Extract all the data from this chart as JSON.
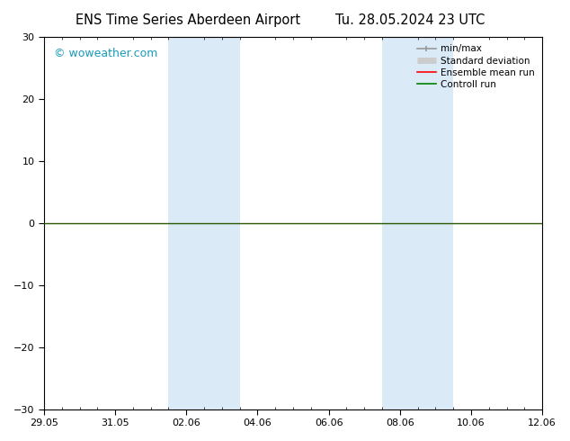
{
  "title_left": "ENS Time Series Aberdeen Airport",
  "title_right": "Tu. 28.05.2024 23 UTC",
  "ylim": [
    -30,
    30
  ],
  "yticks": [
    -30,
    -20,
    -10,
    0,
    10,
    20,
    30
  ],
  "xtick_labels": [
    "29.05",
    "31.05",
    "02.06",
    "04.06",
    "06.06",
    "08.06",
    "10.06",
    "12.06"
  ],
  "xtick_positions": [
    0,
    2,
    4,
    6,
    8,
    10,
    12,
    14
  ],
  "background_color": "#ffffff",
  "plot_bg_color": "#ffffff",
  "shaded_bands": [
    {
      "x_start": 3.5,
      "x_end": 4.5,
      "color": "#daeaf7"
    },
    {
      "x_start": 4.5,
      "x_end": 5.5,
      "color": "#daeaf7"
    },
    {
      "x_start": 9.5,
      "x_end": 10.5,
      "color": "#daeaf7"
    },
    {
      "x_start": 10.5,
      "x_end": 11.5,
      "color": "#daeaf7"
    }
  ],
  "zero_line_color": "#2a5a00",
  "grid_color": "#cccccc",
  "watermark_text": "© woweather.com",
  "watermark_color": "#1a9aba",
  "legend_items": [
    {
      "label": "min/max",
      "color": "#999999",
      "lw": 1.2,
      "style": "minmax"
    },
    {
      "label": "Standard deviation",
      "color": "#cccccc",
      "lw": 5,
      "style": "solid"
    },
    {
      "label": "Ensemble mean run",
      "color": "#ff0000",
      "lw": 1.2,
      "style": "solid"
    },
    {
      "label": "Controll run",
      "color": "#008000",
      "lw": 1.2,
      "style": "solid"
    }
  ],
  "title_fontsize": 10.5,
  "tick_fontsize": 8,
  "watermark_fontsize": 9,
  "legend_fontsize": 7.5
}
